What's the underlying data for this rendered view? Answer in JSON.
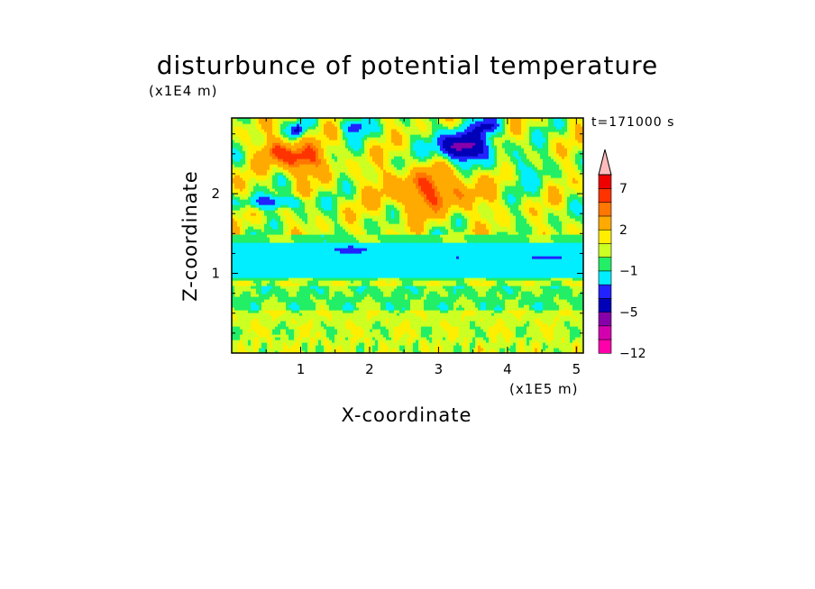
{
  "chart_data": {
    "type": "heatmap",
    "title": "disturbunce of potential temperature",
    "xlabel": "X-coordinate",
    "ylabel": "Z-coordinate",
    "x_unit": "(x1E5 m)",
    "y_unit": "(x1E4 m)",
    "time_label": "t=171000 s",
    "xlim": [
      0,
      5.1
    ],
    "ylim": [
      0,
      2.95
    ],
    "x_ticks": [
      "1",
      "2",
      "3",
      "4",
      "5"
    ],
    "y_ticks": [
      "1",
      "2"
    ],
    "colorbar_labels": [
      "7",
      "2",
      "−1",
      "−5",
      "−12"
    ],
    "colorbar_levels": [
      "<-12",
      "-12..-10",
      "-10..-8",
      "-8..-5",
      "-5..-3",
      "-3..-1",
      "-1..0",
      "0..1",
      "1..2",
      "2..4",
      "4..5",
      "5..7",
      "7..9",
      ">9"
    ],
    "colorbar_colors": [
      "#ff00aa",
      "#d400b0",
      "#8800aa",
      "#0000b8",
      "#2222ff",
      "#00eeff",
      "#22ee66",
      "#ccff22",
      "#ffee00",
      "#ffaa00",
      "#ff7700",
      "#ff3300",
      "#ee0000",
      "#ffbbbb"
    ],
    "features": [
      {
        "name": "near-surface band",
        "z_range": [
          0,
          0.9
        ],
        "dominant_levels": [
          "0..1",
          "1..2",
          "-1..0"
        ]
      },
      {
        "name": "negative layer",
        "z_range": [
          0.9,
          1.45
        ],
        "dominant_levels": [
          "-3..-1",
          "-5..-3"
        ]
      },
      {
        "name": "upper wave field",
        "z_range": [
          1.5,
          2.95
        ],
        "dominant_levels": [
          "2..4",
          "4..5",
          "5..7",
          "-1..0",
          "-5..-3"
        ]
      },
      {
        "name": "warm maximum",
        "x": 1.0,
        "z": 2.45,
        "level": "7..9"
      },
      {
        "name": "cold minimum",
        "x": 3.35,
        "z": 2.6,
        "level": "-10..-8"
      }
    ],
    "grid": false
  }
}
